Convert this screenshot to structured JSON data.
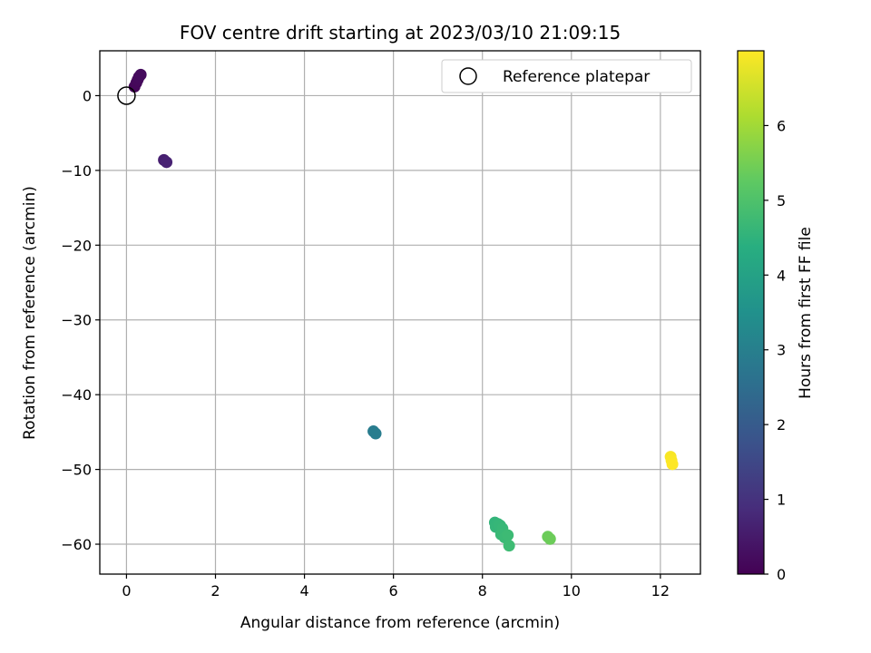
{
  "chart_data": {
    "type": "scatter",
    "title": "FOV centre drift starting at 2023/03/10 21:09:15",
    "xlabel": "Angular distance from reference (arcmin)",
    "ylabel": "Rotation from reference (arcmin)",
    "xlim": [
      -0.6,
      12.9
    ],
    "ylim": [
      -64,
      6
    ],
    "x_ticks": [
      0,
      2,
      4,
      6,
      8,
      10,
      12
    ],
    "y_ticks": [
      0,
      -10,
      -20,
      -30,
      -40,
      -50,
      -60
    ],
    "x_tick_labels": [
      "0",
      "2",
      "4",
      "6",
      "8",
      "10",
      "12"
    ],
    "y_tick_labels": [
      "0",
      "−10",
      "−20",
      "−30",
      "−40",
      "−50",
      "−60"
    ],
    "grid": true,
    "legend": {
      "placement": "top-right",
      "entries": [
        {
          "label": "Reference platepar",
          "marker": "open-circle"
        }
      ]
    },
    "colorbar": {
      "label": "Hours from first FF file",
      "range": [
        0,
        7.0
      ],
      "ticks": [
        0,
        1,
        2,
        3,
        4,
        5,
        6
      ],
      "tick_labels": [
        "0",
        "1",
        "2",
        "3",
        "4",
        "5",
        "6"
      ],
      "colormap": "viridis"
    },
    "reference_point": {
      "x": 0,
      "y": 0
    },
    "points": [
      {
        "x": 0.18,
        "y": 1.2,
        "hours": 0.1
      },
      {
        "x": 0.22,
        "y": 1.7,
        "hours": 0.12
      },
      {
        "x": 0.25,
        "y": 2.1,
        "hours": 0.15
      },
      {
        "x": 0.28,
        "y": 2.5,
        "hours": 0.18
      },
      {
        "x": 0.32,
        "y": 2.8,
        "hours": 0.2
      },
      {
        "x": 0.84,
        "y": -8.6,
        "hours": 0.6
      },
      {
        "x": 0.9,
        "y": -8.9,
        "hours": 0.65
      },
      {
        "x": 5.55,
        "y": -44.9,
        "hours": 2.9
      },
      {
        "x": 5.6,
        "y": -45.2,
        "hours": 2.95
      },
      {
        "x": 8.28,
        "y": -57.1,
        "hours": 4.55
      },
      {
        "x": 8.3,
        "y": -57.7,
        "hours": 4.6
      },
      {
        "x": 8.35,
        "y": -57.3,
        "hours": 4.6
      },
      {
        "x": 8.4,
        "y": -57.5,
        "hours": 4.62
      },
      {
        "x": 8.45,
        "y": -57.9,
        "hours": 4.65
      },
      {
        "x": 8.42,
        "y": -58.7,
        "hours": 4.7
      },
      {
        "x": 8.5,
        "y": -59.1,
        "hours": 4.72
      },
      {
        "x": 8.57,
        "y": -58.8,
        "hours": 4.75
      },
      {
        "x": 8.6,
        "y": -60.2,
        "hours": 4.78
      },
      {
        "x": 9.47,
        "y": -59.0,
        "hours": 5.4
      },
      {
        "x": 9.52,
        "y": -59.3,
        "hours": 5.42
      },
      {
        "x": 12.23,
        "y": -48.3,
        "hours": 6.95
      },
      {
        "x": 12.25,
        "y": -48.8,
        "hours": 6.97
      },
      {
        "x": 12.27,
        "y": -49.3,
        "hours": 7.0
      }
    ]
  }
}
